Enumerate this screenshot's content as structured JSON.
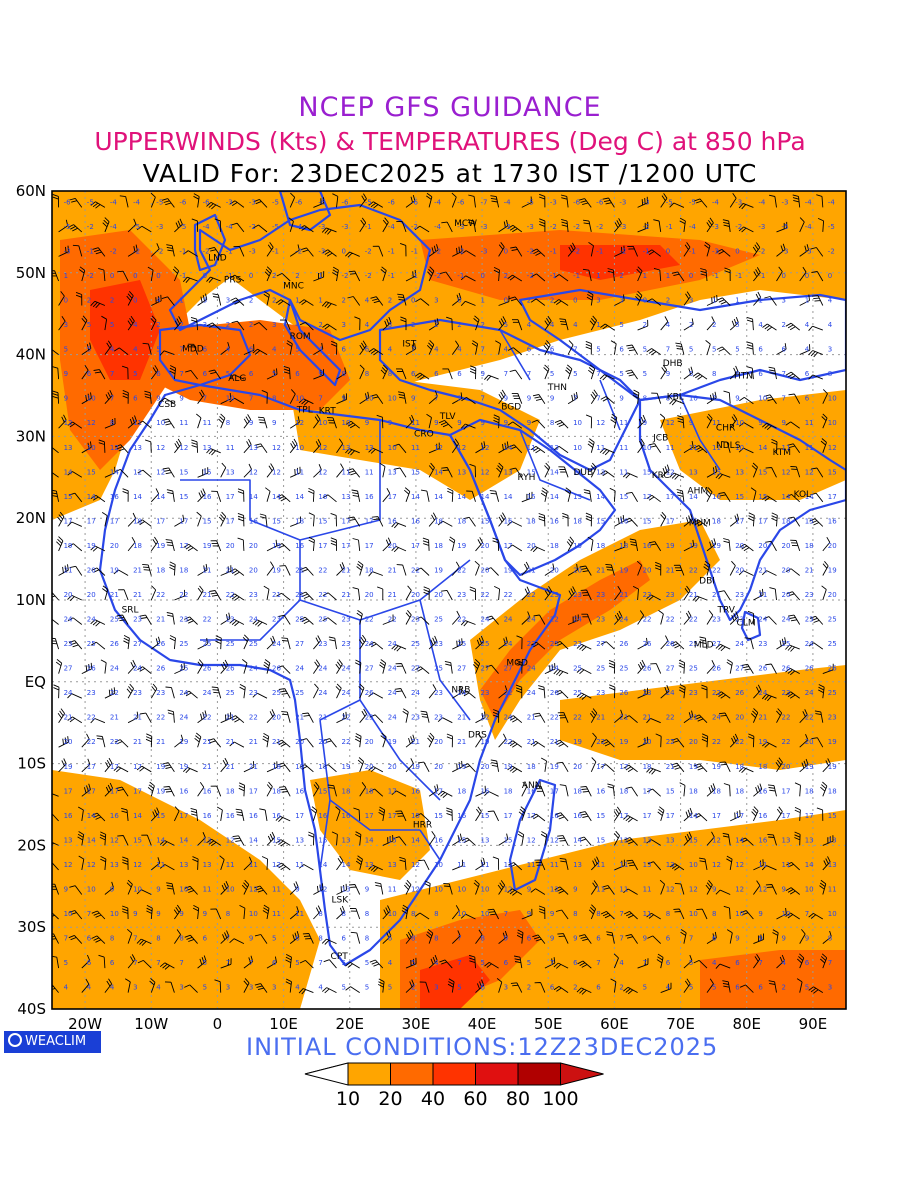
{
  "header": {
    "title": "NCEP GFS GUIDANCE",
    "subtitle": "UPPERWINDS (Kts) & TEMPERATURES (Deg C) at 850 hPa",
    "valid": "VALID For: 23DEC2025 at 1730 IST /1200 UTC"
  },
  "map": {
    "lat_range": [
      -40,
      60
    ],
    "lon_range": [
      -25,
      95
    ],
    "lat_labels": [
      "60N",
      "50N",
      "40N",
      "30N",
      "20N",
      "10N",
      "EQ",
      "10S",
      "20S",
      "30S",
      "40S"
    ],
    "lon_labels": [
      "20W",
      "10W",
      "0",
      "10E",
      "20E",
      "30E",
      "40E",
      "50E",
      "60E",
      "70E",
      "80E",
      "90E"
    ],
    "stations": [
      {
        "code": "MCW",
        "lon": 37.5,
        "lat": 55.7
      },
      {
        "code": "LND",
        "lon": 0.0,
        "lat": 51.5
      },
      {
        "code": "PRS",
        "lon": 2.3,
        "lat": 48.8
      },
      {
        "code": "MNC",
        "lon": 11.5,
        "lat": 48.1
      },
      {
        "code": "ROM",
        "lon": 12.5,
        "lat": 41.9
      },
      {
        "code": "MDD",
        "lon": -3.7,
        "lat": 40.4
      },
      {
        "code": "ALG",
        "lon": 3.0,
        "lat": 36.8
      },
      {
        "code": "IST",
        "lon": 29.0,
        "lat": 41.0
      },
      {
        "code": "CSB",
        "lon": -7.6,
        "lat": 33.6
      },
      {
        "code": "TPL",
        "lon": 13.2,
        "lat": 32.9
      },
      {
        "code": "KRT",
        "lon": 16.6,
        "lat": 32.8
      },
      {
        "code": "TLV",
        "lon": 34.8,
        "lat": 32.1
      },
      {
        "code": "CRO",
        "lon": 31.2,
        "lat": 30.0
      },
      {
        "code": "BGD",
        "lon": 44.4,
        "lat": 33.3
      },
      {
        "code": "THN",
        "lon": 51.4,
        "lat": 35.7
      },
      {
        "code": "RYH",
        "lon": 46.7,
        "lat": 24.7
      },
      {
        "code": "DUB",
        "lon": 55.3,
        "lat": 25.3
      },
      {
        "code": "KBL",
        "lon": 69.2,
        "lat": 34.5
      },
      {
        "code": "DHB",
        "lon": 68.8,
        "lat": 38.6
      },
      {
        "code": "HTN",
        "lon": 79.5,
        "lat": 37.1
      },
      {
        "code": "CHR",
        "lon": 76.8,
        "lat": 30.7
      },
      {
        "code": "JCB",
        "lon": 67.0,
        "lat": 29.5
      },
      {
        "code": "NDLS",
        "lon": 77.2,
        "lat": 28.6
      },
      {
        "code": "KTM",
        "lon": 85.3,
        "lat": 27.7
      },
      {
        "code": "KRC",
        "lon": 67.0,
        "lat": 24.9
      },
      {
        "code": "AHM",
        "lon": 72.6,
        "lat": 23.0
      },
      {
        "code": "KOL",
        "lon": 88.4,
        "lat": 22.6
      },
      {
        "code": "MUM",
        "lon": 72.9,
        "lat": 19.1
      },
      {
        "code": "DBI",
        "lon": 74.0,
        "lat": 12.0
      },
      {
        "code": "TRV",
        "lon": 76.9,
        "lat": 8.5
      },
      {
        "code": "CLM",
        "lon": 79.9,
        "lat": 6.9
      },
      {
        "code": "MLD",
        "lon": 73.5,
        "lat": 4.2
      },
      {
        "code": "SRL",
        "lon": -13.2,
        "lat": 8.5
      },
      {
        "code": "MGD",
        "lon": 45.3,
        "lat": 2.0
      },
      {
        "code": "NRB",
        "lon": 36.8,
        "lat": -1.3
      },
      {
        "code": "DRS",
        "lon": 39.3,
        "lat": -6.8
      },
      {
        "code": "ANN",
        "lon": 47.5,
        "lat": -13.0
      },
      {
        "code": "HRR",
        "lon": 31.0,
        "lat": -17.8
      },
      {
        "code": "LSK",
        "lon": 18.5,
        "lat": -27.0
      },
      {
        "code": "CPT",
        "lon": 18.4,
        "lat": -33.9
      }
    ]
  },
  "legend": {
    "labels": [
      "10",
      "20",
      "40",
      "60",
      "80",
      "100"
    ],
    "colors": [
      "#ffffff",
      "#ffa500",
      "#ff6a00",
      "#ff3300",
      "#e01010",
      "#b00000",
      "#cc1111"
    ]
  },
  "footer": {
    "brand": "WEACLIM",
    "initial_conditions": "INITIAL CONDITIONS:12Z23DEC2025"
  },
  "colors": {
    "boundary": "#2a47e8",
    "grid": "#9a9a9a",
    "title": "#9a1fd0",
    "subtitle": "#e0127a",
    "init": "#4a6ef0"
  }
}
